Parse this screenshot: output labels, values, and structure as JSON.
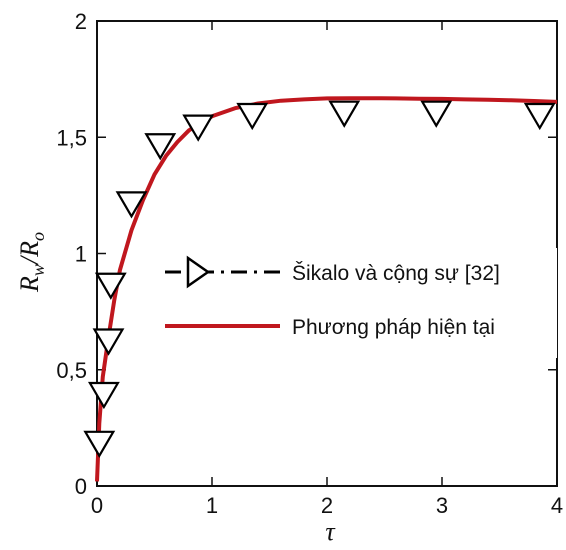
{
  "chart_data": {
    "type": "line",
    "title": "",
    "xlabel": "τ",
    "ylabel": {
      "base1": "R",
      "sub1": "w",
      "slash": "/",
      "base2": "R",
      "sub2": "o"
    },
    "xlim": [
      0,
      4
    ],
    "ylim": [
      0,
      2
    ],
    "x_ticks": [
      0,
      1,
      2,
      3,
      4
    ],
    "y_ticks": [
      0,
      0.5,
      1,
      1.5,
      2
    ],
    "x_tick_labels": [
      "0",
      "1",
      "2",
      "3",
      "4"
    ],
    "y_tick_labels": [
      "0",
      "0,5",
      "1",
      "1,5",
      "2"
    ],
    "grid": false,
    "legend_position": "center-right",
    "series": [
      {
        "name": "Šikalo và cộng sự [32]",
        "style": "markers",
        "marker": "triangle-down",
        "color": "#000000",
        "x": [
          0.02,
          0.06,
          0.1,
          0.12,
          0.3,
          0.55,
          0.88,
          1.35,
          2.15,
          2.95,
          3.85
        ],
        "y": [
          0.19,
          0.4,
          0.63,
          0.87,
          1.22,
          1.47,
          1.55,
          1.6,
          1.61,
          1.61,
          1.6
        ]
      },
      {
        "name": "Phương pháp hiện tại",
        "style": "line",
        "color": "#c0171e",
        "x": [
          0,
          0.02,
          0.05,
          0.1,
          0.15,
          0.2,
          0.3,
          0.4,
          0.5,
          0.6,
          0.7,
          0.8,
          0.9,
          1.0,
          1.2,
          1.4,
          1.6,
          1.8,
          2.0,
          2.2,
          2.4,
          2.6,
          2.8,
          3.0,
          3.2,
          3.4,
          3.6,
          3.8,
          4.0
        ],
        "y": [
          0.02,
          0.27,
          0.47,
          0.64,
          0.8,
          0.93,
          1.1,
          1.23,
          1.34,
          1.42,
          1.48,
          1.53,
          1.56,
          1.59,
          1.625,
          1.645,
          1.657,
          1.663,
          1.667,
          1.668,
          1.668,
          1.667,
          1.666,
          1.665,
          1.663,
          1.661,
          1.659,
          1.656,
          1.652
        ]
      }
    ]
  }
}
